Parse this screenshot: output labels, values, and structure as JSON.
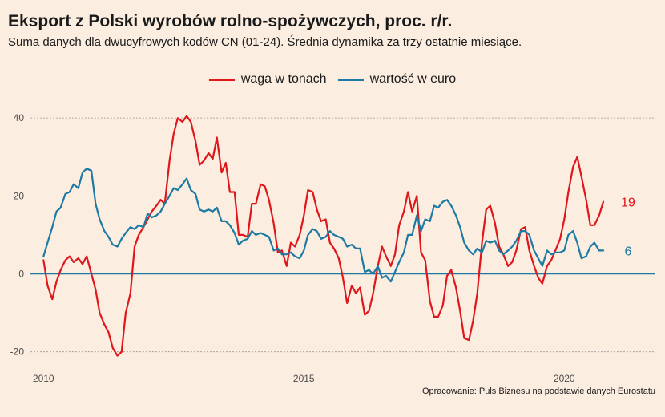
{
  "title": "Eksport z Polski wyrobów rolno-spożywczych, proc. r/r.",
  "subtitle": "Suma danych dla dwucyfrowych kodów CN (01-24). Średnia dynamika za trzy ostatnie miesiące.",
  "caption": "Opracowanie: Puls Biznesu na podstawie danych Eurostatu",
  "colors": {
    "background": "#fbede0",
    "waga": "#e0161b",
    "wartosc": "#1c7aa3",
    "zero_line": "#1c7aa3",
    "grid": "#9a9a9a"
  },
  "chart_data": {
    "type": "line",
    "x_unit": "year",
    "xlim": [
      2009.75,
      2021.75
    ],
    "ylim": [
      -25,
      46
    ],
    "x_ticks": [
      2010,
      2015,
      2020
    ],
    "x_tick_labels": [
      "2010",
      "2015",
      "2020"
    ],
    "y_ticks": [
      -20,
      0,
      20,
      40
    ],
    "y_tick_labels": [
      "-20",
      "0",
      "20",
      "40"
    ],
    "grid": "horizontal dotted",
    "legend_position": "top",
    "series": [
      {
        "name": "waga w tonach",
        "color": "#e0161b",
        "end_label": "19",
        "points": [
          [
            2010.0,
            3.5
          ],
          [
            2010.08,
            -3
          ],
          [
            2010.17,
            -6.5
          ],
          [
            2010.25,
            -2
          ],
          [
            2010.33,
            1
          ],
          [
            2010.42,
            3.5
          ],
          [
            2010.5,
            4.5
          ],
          [
            2010.58,
            3
          ],
          [
            2010.67,
            4
          ],
          [
            2010.75,
            2.5
          ],
          [
            2010.83,
            4.5
          ],
          [
            2010.92,
            0
          ],
          [
            2011.0,
            -4
          ],
          [
            2011.08,
            -10
          ],
          [
            2011.17,
            -13
          ],
          [
            2011.25,
            -15
          ],
          [
            2011.33,
            -19
          ],
          [
            2011.42,
            -21
          ],
          [
            2011.5,
            -20
          ],
          [
            2011.58,
            -10
          ],
          [
            2011.67,
            -5
          ],
          [
            2011.75,
            7
          ],
          [
            2011.83,
            10
          ],
          [
            2011.92,
            12
          ],
          [
            2012.0,
            14
          ],
          [
            2012.08,
            16
          ],
          [
            2012.17,
            17.5
          ],
          [
            2012.25,
            19
          ],
          [
            2012.33,
            18
          ],
          [
            2012.42,
            29
          ],
          [
            2012.5,
            36
          ],
          [
            2012.58,
            40
          ],
          [
            2012.67,
            39
          ],
          [
            2012.75,
            40.5
          ],
          [
            2012.83,
            39
          ],
          [
            2012.92,
            34
          ],
          [
            2013.0,
            28
          ],
          [
            2013.08,
            29
          ],
          [
            2013.17,
            31
          ],
          [
            2013.25,
            29.5
          ],
          [
            2013.33,
            35
          ],
          [
            2013.42,
            26
          ],
          [
            2013.5,
            28.5
          ],
          [
            2013.58,
            21
          ],
          [
            2013.67,
            21
          ],
          [
            2013.75,
            10
          ],
          [
            2013.83,
            10
          ],
          [
            2013.92,
            9.5
          ],
          [
            2014.0,
            18
          ],
          [
            2014.08,
            18
          ],
          [
            2014.17,
            23
          ],
          [
            2014.25,
            22.5
          ],
          [
            2014.33,
            19
          ],
          [
            2014.42,
            13
          ],
          [
            2014.5,
            5.5
          ],
          [
            2014.58,
            6
          ],
          [
            2014.67,
            2
          ],
          [
            2014.75,
            8
          ],
          [
            2014.83,
            7
          ],
          [
            2014.92,
            10
          ],
          [
            2015.0,
            15
          ],
          [
            2015.08,
            21.5
          ],
          [
            2015.17,
            21
          ],
          [
            2015.25,
            16.5
          ],
          [
            2015.33,
            13.5
          ],
          [
            2015.42,
            14
          ],
          [
            2015.5,
            8
          ],
          [
            2015.58,
            6.5
          ],
          [
            2015.67,
            4
          ],
          [
            2015.75,
            -1
          ],
          [
            2015.83,
            -7.5
          ],
          [
            2015.92,
            -3
          ],
          [
            2016.0,
            -5
          ],
          [
            2016.08,
            -3.5
          ],
          [
            2016.17,
            -10.5
          ],
          [
            2016.25,
            -9.5
          ],
          [
            2016.33,
            -5
          ],
          [
            2016.42,
            2
          ],
          [
            2016.5,
            7
          ],
          [
            2016.58,
            4.5
          ],
          [
            2016.67,
            2
          ],
          [
            2016.75,
            5
          ],
          [
            2016.83,
            12.5
          ],
          [
            2016.92,
            16
          ],
          [
            2017.0,
            21
          ],
          [
            2017.08,
            16
          ],
          [
            2017.17,
            20
          ],
          [
            2017.25,
            5.5
          ],
          [
            2017.33,
            3.5
          ],
          [
            2017.42,
            -7
          ],
          [
            2017.5,
            -11
          ],
          [
            2017.58,
            -11
          ],
          [
            2017.67,
            -8
          ],
          [
            2017.75,
            -0.5
          ],
          [
            2017.83,
            1
          ],
          [
            2017.92,
            -3.5
          ],
          [
            2018.0,
            -9.5
          ],
          [
            2018.08,
            -16.5
          ],
          [
            2018.17,
            -17
          ],
          [
            2018.25,
            -12
          ],
          [
            2018.33,
            -5
          ],
          [
            2018.42,
            8
          ],
          [
            2018.5,
            16.5
          ],
          [
            2018.58,
            17.5
          ],
          [
            2018.67,
            13
          ],
          [
            2018.75,
            7
          ],
          [
            2018.83,
            5
          ],
          [
            2018.92,
            2
          ],
          [
            2019.0,
            3
          ],
          [
            2019.08,
            6
          ],
          [
            2019.17,
            11.5
          ],
          [
            2019.25,
            12
          ],
          [
            2019.33,
            6
          ],
          [
            2019.42,
            2
          ],
          [
            2019.5,
            -1
          ],
          [
            2019.58,
            -2.5
          ],
          [
            2019.67,
            2
          ],
          [
            2019.75,
            3.5
          ],
          [
            2019.83,
            6
          ],
          [
            2019.92,
            9
          ],
          [
            2020.0,
            14
          ],
          [
            2020.08,
            21
          ],
          [
            2020.17,
            27.5
          ],
          [
            2020.25,
            30
          ],
          [
            2020.33,
            25
          ],
          [
            2020.42,
            19
          ],
          [
            2020.5,
            12.5
          ],
          [
            2020.58,
            12.5
          ],
          [
            2020.67,
            15
          ],
          [
            2020.75,
            18.5
          ]
        ]
      },
      {
        "name": "wartość w euro",
        "color": "#1c7aa3",
        "end_label": "6",
        "points": [
          [
            2010.0,
            4.5
          ],
          [
            2010.08,
            8
          ],
          [
            2010.17,
            12
          ],
          [
            2010.25,
            16
          ],
          [
            2010.33,
            17
          ],
          [
            2010.42,
            20.5
          ],
          [
            2010.5,
            21
          ],
          [
            2010.58,
            23
          ],
          [
            2010.67,
            22
          ],
          [
            2010.75,
            26
          ],
          [
            2010.83,
            27
          ],
          [
            2010.92,
            26.5
          ],
          [
            2011.0,
            18
          ],
          [
            2011.08,
            14
          ],
          [
            2011.17,
            11
          ],
          [
            2011.25,
            9.5
          ],
          [
            2011.33,
            7.5
          ],
          [
            2011.42,
            7
          ],
          [
            2011.5,
            9
          ],
          [
            2011.58,
            10.5
          ],
          [
            2011.67,
            12
          ],
          [
            2011.75,
            11.5
          ],
          [
            2011.83,
            12.5
          ],
          [
            2011.92,
            12
          ],
          [
            2012.0,
            15.5
          ],
          [
            2012.08,
            14.5
          ],
          [
            2012.17,
            15
          ],
          [
            2012.25,
            16
          ],
          [
            2012.33,
            18
          ],
          [
            2012.42,
            20
          ],
          [
            2012.5,
            22
          ],
          [
            2012.58,
            21.5
          ],
          [
            2012.67,
            23
          ],
          [
            2012.75,
            24.5
          ],
          [
            2012.83,
            21.5
          ],
          [
            2012.92,
            20.5
          ],
          [
            2013.0,
            16.5
          ],
          [
            2013.08,
            16
          ],
          [
            2013.17,
            16.5
          ],
          [
            2013.25,
            16
          ],
          [
            2013.33,
            17
          ],
          [
            2013.42,
            13.5
          ],
          [
            2013.5,
            13.5
          ],
          [
            2013.58,
            12.5
          ],
          [
            2013.67,
            10.5
          ],
          [
            2013.75,
            7.5
          ],
          [
            2013.83,
            8.5
          ],
          [
            2013.92,
            9
          ],
          [
            2014.0,
            11
          ],
          [
            2014.08,
            10
          ],
          [
            2014.17,
            10.5
          ],
          [
            2014.25,
            10
          ],
          [
            2014.33,
            9.5
          ],
          [
            2014.42,
            6
          ],
          [
            2014.5,
            6.5
          ],
          [
            2014.58,
            5
          ],
          [
            2014.67,
            5
          ],
          [
            2014.75,
            5.5
          ],
          [
            2014.83,
            4.5
          ],
          [
            2014.92,
            4
          ],
          [
            2015.0,
            6
          ],
          [
            2015.08,
            10
          ],
          [
            2015.17,
            11.5
          ],
          [
            2015.25,
            11
          ],
          [
            2015.33,
            9
          ],
          [
            2015.42,
            9.5
          ],
          [
            2015.5,
            11
          ],
          [
            2015.58,
            10
          ],
          [
            2015.67,
            9.5
          ],
          [
            2015.75,
            9
          ],
          [
            2015.83,
            7
          ],
          [
            2015.92,
            7.5
          ],
          [
            2016.0,
            6.5
          ],
          [
            2016.08,
            6.5
          ],
          [
            2016.17,
            0.5
          ],
          [
            2016.25,
            1
          ],
          [
            2016.33,
            0
          ],
          [
            2016.42,
            2
          ],
          [
            2016.5,
            -1
          ],
          [
            2016.58,
            -0.5
          ],
          [
            2016.67,
            -2
          ],
          [
            2016.75,
            0.5
          ],
          [
            2016.83,
            3
          ],
          [
            2016.92,
            5.5
          ],
          [
            2017.0,
            10
          ],
          [
            2017.08,
            10
          ],
          [
            2017.17,
            15
          ],
          [
            2017.25,
            11
          ],
          [
            2017.33,
            14
          ],
          [
            2017.42,
            13.5
          ],
          [
            2017.5,
            17.5
          ],
          [
            2017.58,
            17
          ],
          [
            2017.67,
            18.5
          ],
          [
            2017.75,
            19
          ],
          [
            2017.83,
            17.5
          ],
          [
            2017.92,
            15
          ],
          [
            2018.0,
            12
          ],
          [
            2018.08,
            8
          ],
          [
            2018.17,
            6
          ],
          [
            2018.25,
            5
          ],
          [
            2018.33,
            6.5
          ],
          [
            2018.42,
            5.5
          ],
          [
            2018.5,
            8.5
          ],
          [
            2018.58,
            8
          ],
          [
            2018.67,
            8.5
          ],
          [
            2018.75,
            6
          ],
          [
            2018.83,
            5
          ],
          [
            2018.92,
            6
          ],
          [
            2019.0,
            7
          ],
          [
            2019.08,
            8.5
          ],
          [
            2019.17,
            11
          ],
          [
            2019.25,
            11
          ],
          [
            2019.33,
            10
          ],
          [
            2019.42,
            6
          ],
          [
            2019.5,
            4
          ],
          [
            2019.58,
            2
          ],
          [
            2019.67,
            6
          ],
          [
            2019.75,
            5
          ],
          [
            2019.83,
            5.5
          ],
          [
            2019.92,
            5.5
          ],
          [
            2020.0,
            6
          ],
          [
            2020.08,
            10
          ],
          [
            2020.17,
            11
          ],
          [
            2020.25,
            8
          ],
          [
            2020.33,
            4
          ],
          [
            2020.42,
            4.5
          ],
          [
            2020.5,
            7
          ],
          [
            2020.58,
            8
          ],
          [
            2020.67,
            6
          ],
          [
            2020.75,
            6
          ]
        ]
      }
    ]
  }
}
